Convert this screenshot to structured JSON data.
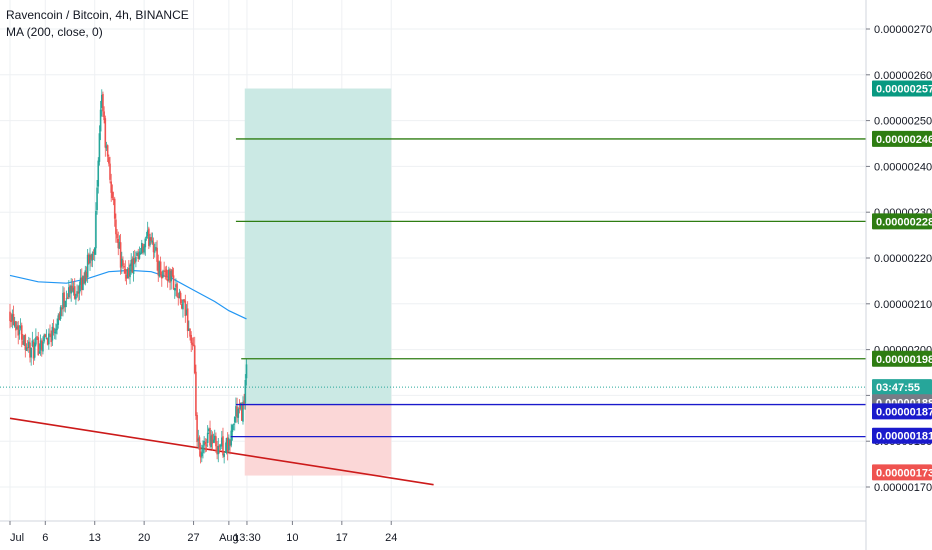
{
  "header": {
    "symbol_title": "Ravencoin / Bitcoin, 4h, BINANCE",
    "indicator_label": "MA (200, close, 0)"
  },
  "colors": {
    "up_candle": "#26a69a",
    "down_candle": "#ef5350",
    "ma_line": "#2196f3",
    "grid": "#eef0f3",
    "profit_zone": "#cbe9e4",
    "stop_zone": "#fbd7d7",
    "target_line": "#2e7d12",
    "entry_line": "#1a1acc",
    "trend_line": "#cc1a1a",
    "price_tag_profit": "#089981",
    "price_tag_target": "#2e7d12",
    "price_tag_entry": "#1a1acc",
    "price_tag_stop": "#ef5350",
    "price_tag_last": "#787b86",
    "countdown_tag": "#26a69a"
  },
  "chart_data": {
    "type": "candlestick",
    "title": "Ravencoin / Bitcoin, 4h, BINANCE",
    "ylim": [
      1.62e-06,
      2.76e-06
    ],
    "y_ticks": [
      "0.00000170",
      "0.00000180",
      "0.00000190",
      "0.00000200",
      "0.00000210",
      "0.00000220",
      "0.00000230",
      "0.00000240",
      "0.00000250",
      "0.00000260",
      "0.00000270"
    ],
    "x_ticks": [
      "Jul",
      "6",
      "13",
      "20",
      "27",
      "Aug",
      "13:30",
      "10",
      "17",
      "24"
    ],
    "x_tick_dates": [
      "2019-07-01",
      "2019-07-06",
      "2019-07-13",
      "2019-07-20",
      "2019-07-27",
      "2019-08-01",
      "2019-08-03T13:30",
      "2019-08-10",
      "2019-08-17",
      "2019-08-24"
    ],
    "candle_anchors": [
      {
        "date": "2019-07-01",
        "price": 2.085e-06
      },
      {
        "date": "2019-07-04",
        "price": 1.995e-06
      },
      {
        "date": "2019-07-07",
        "price": 2.04e-06
      },
      {
        "date": "2019-07-09",
        "price": 2.125e-06
      },
      {
        "date": "2019-07-11",
        "price": 2.135e-06
      },
      {
        "date": "2019-07-13",
        "price": 2.235e-06
      },
      {
        "date": "2019-07-14",
        "price": 2.56e-06
      },
      {
        "date": "2019-07-14T12:00",
        "price": 2.45e-06
      },
      {
        "date": "2019-07-15",
        "price": 2.395e-06
      },
      {
        "date": "2019-07-16",
        "price": 2.27e-06
      },
      {
        "date": "2019-07-17",
        "price": 2.165e-06
      },
      {
        "date": "2019-07-19",
        "price": 2.19e-06
      },
      {
        "date": "2019-07-21",
        "price": 2.255e-06
      },
      {
        "date": "2019-07-22",
        "price": 2.18e-06
      },
      {
        "date": "2019-07-24",
        "price": 2.155e-06
      },
      {
        "date": "2019-07-25",
        "price": 2.105e-06
      },
      {
        "date": "2019-07-26",
        "price": 2.075e-06
      },
      {
        "date": "2019-07-27",
        "price": 1.99e-06
      },
      {
        "date": "2019-07-27T12:00",
        "price": 1.8e-06
      },
      {
        "date": "2019-07-28",
        "price": 1.755e-06
      },
      {
        "date": "2019-07-29",
        "price": 1.82e-06
      },
      {
        "date": "2019-07-30",
        "price": 1.795e-06
      },
      {
        "date": "2019-07-31",
        "price": 1.79e-06
      },
      {
        "date": "2019-08-01",
        "price": 1.785e-06
      },
      {
        "date": "2019-08-01T12:00",
        "price": 1.83e-06
      },
      {
        "date": "2019-08-02",
        "price": 1.865e-06
      },
      {
        "date": "2019-08-02T12:00",
        "price": 1.86e-06
      },
      {
        "date": "2019-08-03",
        "price": 1.87e-06
      },
      {
        "date": "2019-08-03T12:00",
        "price": 1.955e-06
      },
      {
        "date": "2019-08-03T13:30",
        "price": 1.918e-06
      }
    ],
    "ma_200": [
      {
        "date": "2019-07-01",
        "price": 2.162e-06
      },
      {
        "date": "2019-07-05",
        "price": 2.148e-06
      },
      {
        "date": "2019-07-09",
        "price": 2.145e-06
      },
      {
        "date": "2019-07-12",
        "price": 2.155e-06
      },
      {
        "date": "2019-07-15",
        "price": 2.17e-06
      },
      {
        "date": "2019-07-18",
        "price": 2.173e-06
      },
      {
        "date": "2019-07-21",
        "price": 2.17e-06
      },
      {
        "date": "2019-07-24",
        "price": 2.155e-06
      },
      {
        "date": "2019-07-27",
        "price": 2.13e-06
      },
      {
        "date": "2019-07-30",
        "price": 2.105e-06
      },
      {
        "date": "2019-08-01",
        "price": 2.085e-06
      },
      {
        "date": "2019-08-03T12:00",
        "price": 2.067e-06
      }
    ],
    "position": {
      "start": "2019-08-03T06:00",
      "end": "2019-08-24",
      "entry": 1.88e-06,
      "take_profit": 2.57e-06,
      "stop": 1.725e-06
    },
    "horizontal_lines": [
      {
        "price": 2.46e-06,
        "from": "2019-08-02"
      },
      {
        "price": 2.28e-06,
        "from": "2019-08-02"
      },
      {
        "price": 1.98e-06,
        "from": "2019-08-02T18:00"
      },
      {
        "price": 1.88e-06,
        "from": "2019-08-02"
      },
      {
        "price": 1.81e-06,
        "from": "2019-08-01T06:00"
      }
    ],
    "trend_line": [
      {
        "date": "2019-07-01",
        "price": 1.85e-06
      },
      {
        "date": "2019-08-30",
        "price": 1.705e-06
      }
    ],
    "last_price": 1.918e-06,
    "price_tags": [
      {
        "label": "0.00000257",
        "price": 2.57e-06,
        "color_key": "price_tag_profit"
      },
      {
        "label": "0.00000246",
        "price": 2.46e-06,
        "color_key": "price_tag_target"
      },
      {
        "label": "0.00000228",
        "price": 2.28e-06,
        "color_key": "price_tag_target"
      },
      {
        "label": "0.00000198",
        "price": 1.98e-06,
        "color_key": "price_tag_target"
      },
      {
        "label": "03:47:55",
        "price": 1.918e-06,
        "color_key": "countdown_tag"
      },
      {
        "label": "0.00000188",
        "price": 1.885e-06,
        "color_key": "price_tag_last"
      },
      {
        "label": "0.00000187",
        "price": 1.865e-06,
        "color_key": "price_tag_entry"
      },
      {
        "label": "0.00000181",
        "price": 1.812e-06,
        "color_key": "price_tag_entry"
      },
      {
        "label": "0.00000173",
        "price": 1.732e-06,
        "color_key": "price_tag_stop"
      }
    ]
  }
}
